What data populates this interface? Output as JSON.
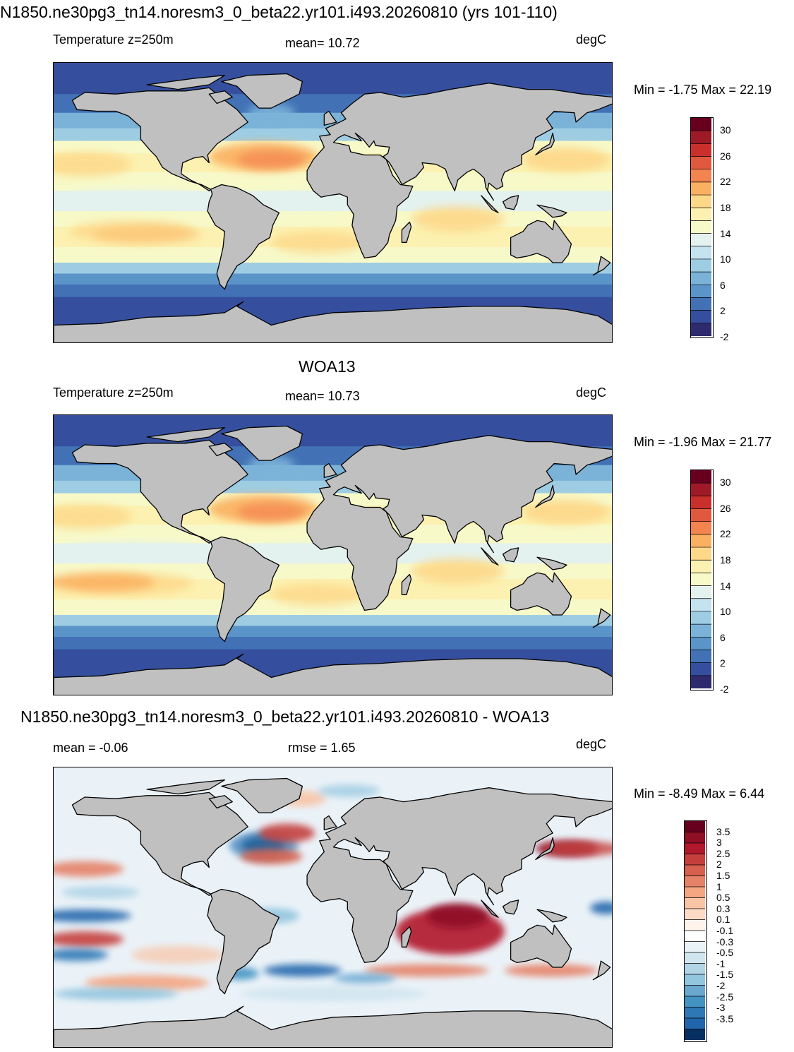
{
  "panel1": {
    "title": "N1850.ne30pg3_tn14.noresm3_0_beta22.yr101.i493.20260810 (yrs 101-110)",
    "variable": "Temperature z=250m",
    "mean_label": "mean=  10.72",
    "units": "degC",
    "minmax": "Min =  -1.75 Max =  22.19"
  },
  "panel2": {
    "title": "WOA13",
    "variable": "Temperature z=250m",
    "mean_label": "mean=  10.73",
    "units": "degC",
    "minmax": "Min =  -1.96 Max =  21.77"
  },
  "panel3": {
    "title": "N1850.ne30pg3_tn14.noresm3_0_beta22.yr101.i493.20260810 - WOA13",
    "mean_label": "mean =  -0.06",
    "rmse_label": "rmse =   1.65",
    "units": "degC",
    "minmax": "Min =  -8.49 Max =   6.44"
  },
  "temp_colorbar": {
    "labels": [
      "30",
      "26",
      "22",
      "18",
      "14",
      "10",
      "6",
      "2",
      "-2"
    ],
    "colors": [
      "#67001f",
      "#9e1a26",
      "#c9302c",
      "#e0583e",
      "#f3834f",
      "#fbb061",
      "#fdd889",
      "#fcf1b0",
      "#f7f9c8",
      "#e3f2ee",
      "#c5e3ef",
      "#9ecde3",
      "#7bb3d8",
      "#5a94c8",
      "#4272b5",
      "#354f9e",
      "#2f2a6e"
    ]
  },
  "diff_colorbar": {
    "labels": [
      "3.5",
      "3",
      "2.5",
      "2",
      "1.5",
      "1",
      "0.5",
      "0.3",
      "0.1",
      "-0.1",
      "-0.3",
      "-0.5",
      "-1",
      "-1.5",
      "-2",
      "-2.5",
      "-3",
      "-3.5"
    ],
    "colors": [
      "#67001f",
      "#8f0f25",
      "#b2182b",
      "#c53f3d",
      "#d6604d",
      "#e58267",
      "#f4a582",
      "#f8c4a6",
      "#fddbc7",
      "#fff3ec",
      "#ffffff",
      "#e9f2f7",
      "#d1e5f0",
      "#b1d4e7",
      "#92c5de",
      "#6aa8d0",
      "#4393c3",
      "#2e78b5",
      "#2166ac",
      "#053061"
    ]
  }
}
